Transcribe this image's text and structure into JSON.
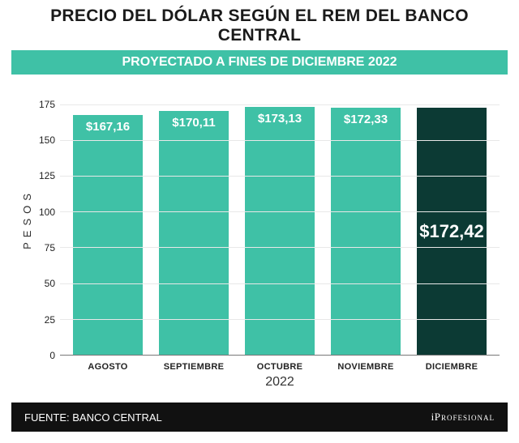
{
  "title": "PRECIO DEL DÓLAR SEGÚN EL REM DEL BANCO CENTRAL",
  "title_color": "#1a1a1a",
  "title_fontsize": 21,
  "subtitle": "PROYECTADO A FINES DE DICIEMBRE 2022",
  "subtitle_bg": "#3fc1a6",
  "subtitle_color": "#ffffff",
  "subtitle_fontsize": 16,
  "chart": {
    "type": "bar",
    "y_label": "PESOS",
    "ylim_min": 0,
    "ylim_max": 190,
    "yticks": [
      0,
      25,
      50,
      75,
      100,
      125,
      150,
      175
    ],
    "grid_color": "#e8e8e8",
    "baseline_color": "#777777",
    "plot_bg": "#ffffff",
    "bar_width_pct": 82,
    "bar_label_fontsize": 15,
    "highlight_label_fontsize": 22,
    "categories": [
      "AGOSTO",
      "SEPTIEMBRE",
      "OCTUBRE",
      "NOVIEMBRE",
      "DICIEMBRE"
    ],
    "values": [
      167.16,
      170.11,
      173.13,
      172.33,
      172.42
    ],
    "value_labels": [
      "$167,16",
      "$170,11",
      "$173,13",
      "$172,33",
      "$172,42"
    ],
    "bar_colors": [
      "#3fc1a6",
      "#3fc1a6",
      "#3fc1a6",
      "#3fc1a6",
      "#0c3a34"
    ],
    "label_positions": [
      "inside-top",
      "inside-top",
      "inside-top",
      "inside-top",
      "inside-middle"
    ],
    "label_colors": [
      "#ffffff",
      "#ffffff",
      "#ffffff",
      "#ffffff",
      "#ffffff"
    ],
    "x_year": "2022",
    "x_tick_fontsize": 11
  },
  "footer": {
    "source_label": "FUENTE: BANCO CENTRAL",
    "brand_i": "i",
    "brand_rest": "Profesional",
    "bg": "#111111",
    "color": "#ffffff"
  }
}
